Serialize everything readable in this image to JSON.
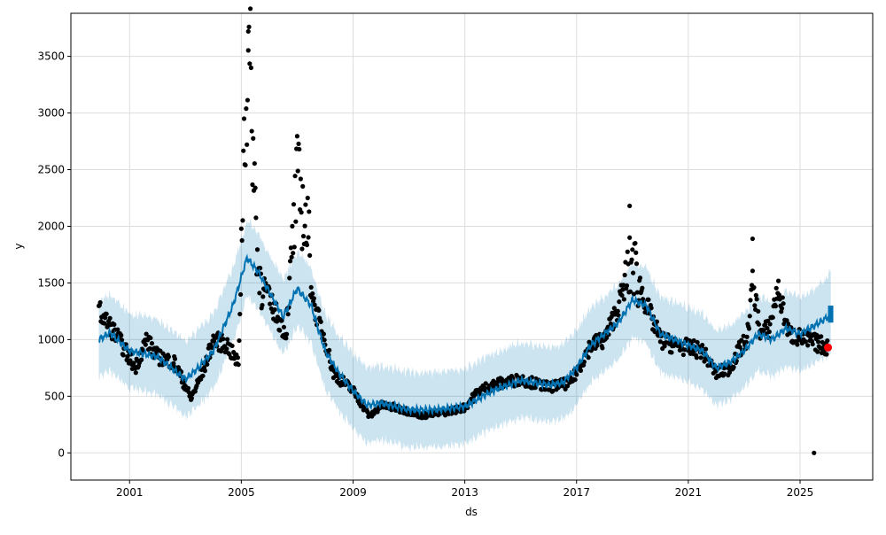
{
  "chart_data": {
    "type": "scatter",
    "title": "",
    "xlabel": "ds",
    "ylabel": "y",
    "xlim": [
      1998.9,
      2027.6
    ],
    "ylim": [
      -240,
      3880
    ],
    "grid": true,
    "xticks": [
      2001,
      2005,
      2009,
      2013,
      2017,
      2021,
      2025
    ],
    "xtick_labels": [
      "2001",
      "2005",
      "2009",
      "2013",
      "2017",
      "2021",
      "2025"
    ],
    "yticks": [
      0,
      500,
      1000,
      1500,
      2000,
      2500,
      3000,
      3500
    ],
    "ytick_labels": [
      "0",
      "500",
      "1000",
      "1500",
      "2000",
      "2500",
      "3000",
      "3500"
    ],
    "colors": {
      "forecast": "#0072B2",
      "band": "#0072B2",
      "observed": "#000000",
      "highlight": "#ff0000"
    },
    "forecast_yhat": [
      [
        1999.9,
        1000
      ],
      [
        2000.3,
        1060
      ],
      [
        2001,
        900
      ],
      [
        2002,
        850
      ],
      [
        2003,
        650
      ],
      [
        2003.5,
        760
      ],
      [
        2004,
        900
      ],
      [
        2004.7,
        1300
      ],
      [
        2005.2,
        1720
      ],
      [
        2005.6,
        1600
      ],
      [
        2006.5,
        1200
      ],
      [
        2007,
        1450
      ],
      [
        2007.5,
        1300
      ],
      [
        2008,
        900
      ],
      [
        2008.5,
        700
      ],
      [
        2009,
        550
      ],
      [
        2009.5,
        420
      ],
      [
        2010,
        440
      ],
      [
        2011,
        380
      ],
      [
        2012,
        380
      ],
      [
        2013,
        410
      ],
      [
        2014,
        550
      ],
      [
        2015,
        640
      ],
      [
        2016,
        600
      ],
      [
        2016.5,
        620
      ],
      [
        2017,
        750
      ],
      [
        2017.5,
        950
      ],
      [
        2018,
        1050
      ],
      [
        2018.5,
        1150
      ],
      [
        2019,
        1350
      ],
      [
        2019.5,
        1300
      ],
      [
        2020,
        1050
      ],
      [
        2020.5,
        1000
      ],
      [
        2021,
        950
      ],
      [
        2021.5,
        900
      ],
      [
        2022,
        750
      ],
      [
        2022.5,
        800
      ],
      [
        2023,
        900
      ],
      [
        2023.5,
        1050
      ],
      [
        2024,
        1000
      ],
      [
        2024.5,
        1100
      ],
      [
        2025,
        1050
      ],
      [
        2025.5,
        1120
      ],
      [
        2026,
        1200
      ],
      [
        2026.1,
        1250
      ]
    ],
    "band_halfwidth": 330,
    "observed": [
      [
        1999.9,
        1250
      ],
      [
        2000.5,
        1050
      ],
      [
        2001.2,
        750
      ],
      [
        2001.6,
        1000
      ],
      [
        2002,
        850
      ],
      [
        2002.6,
        800
      ],
      [
        2003.2,
        480
      ],
      [
        2003.6,
        700
      ],
      [
        2004,
        1000
      ],
      [
        2004.5,
        950
      ],
      [
        2004.9,
        780
      ],
      [
        2005.1,
        2800
      ],
      [
        2005.3,
        3500
      ],
      [
        2005.45,
        2500
      ],
      [
        2005.6,
        1600
      ],
      [
        2006,
        1350
      ],
      [
        2006.6,
        1050
      ],
      [
        2006.8,
        1700
      ],
      [
        2007,
        2400
      ],
      [
        2007.4,
        1900
      ],
      [
        2007.6,
        1300
      ],
      [
        2008,
        1000
      ],
      [
        2008.3,
        700
      ],
      [
        2009,
        550
      ],
      [
        2009.6,
        320
      ],
      [
        2010,
        420
      ],
      [
        2010.5,
        400
      ],
      [
        2011.5,
        330
      ],
      [
        2012.3,
        360
      ],
      [
        2013,
        400
      ],
      [
        2013.5,
        550
      ],
      [
        2014,
        600
      ],
      [
        2015,
        650
      ],
      [
        2016,
        580
      ],
      [
        2016.8,
        620
      ],
      [
        2017.5,
        950
      ],
      [
        2018,
        1000
      ],
      [
        2018.5,
        1300
      ],
      [
        2019,
        1700
      ],
      [
        2019.5,
        1300
      ],
      [
        2020,
        1000
      ],
      [
        2020.5,
        950
      ],
      [
        2021,
        930
      ],
      [
        2021.5,
        900
      ],
      [
        2022,
        700
      ],
      [
        2022.5,
        750
      ],
      [
        2022.8,
        900
      ],
      [
        2023.1,
        1000
      ],
      [
        2023.3,
        1500
      ],
      [
        2023.6,
        1050
      ],
      [
        2023.9,
        1100
      ],
      [
        2024.2,
        1450
      ],
      [
        2024.6,
        1050
      ],
      [
        2025.2,
        1000
      ],
      [
        2025.7,
        960
      ],
      [
        2026,
        930
      ]
    ],
    "outliers": [
      [
        2025.5,
        0
      ],
      [
        2005.25,
        3720
      ],
      [
        2018.9,
        2180
      ],
      [
        2023.3,
        1890
      ]
    ],
    "highlight_point": [
      2026,
      930
    ]
  }
}
